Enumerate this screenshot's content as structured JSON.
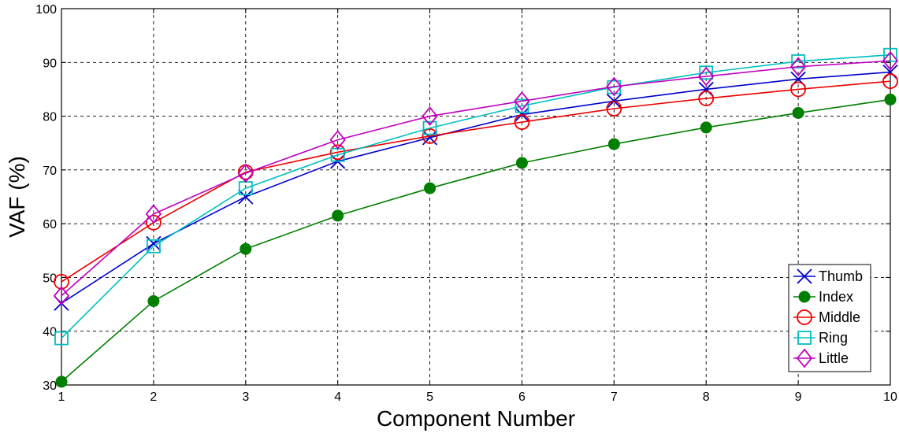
{
  "chart_data": {
    "type": "line",
    "title": "",
    "xlabel": "Component Number",
    "ylabel": "VAF (%)",
    "xlim": [
      1,
      10
    ],
    "ylim": [
      30,
      100
    ],
    "x": [
      1,
      2,
      3,
      4,
      5,
      6,
      7,
      8,
      9,
      10
    ],
    "xticks": [
      "1",
      "2",
      "3",
      "4",
      "5",
      "6",
      "7",
      "8",
      "9",
      "10"
    ],
    "yticks": [
      "30",
      "40",
      "50",
      "60",
      "70",
      "80",
      "90",
      "100"
    ],
    "grid": true,
    "legend_position": "bottom-right",
    "series": [
      {
        "name": "Thumb",
        "color": "#0000cc",
        "marker": "x",
        "values": [
          45.2,
          56.3,
          65.0,
          71.6,
          76.0,
          80.3,
          82.8,
          85.0,
          86.9,
          88.2
        ]
      },
      {
        "name": "Index",
        "color": "#007f00",
        "marker": "circle-filled",
        "values": [
          30.6,
          45.6,
          55.3,
          61.5,
          66.6,
          71.3,
          74.8,
          77.9,
          80.6,
          83.1
        ]
      },
      {
        "name": "Middle",
        "color": "#ee0000",
        "marker": "circle",
        "values": [
          49.2,
          60.2,
          69.6,
          73.3,
          76.3,
          78.9,
          81.4,
          83.3,
          85.0,
          86.5
        ]
      },
      {
        "name": "Ring",
        "color": "#00bfbf",
        "marker": "square",
        "values": [
          38.7,
          55.8,
          66.6,
          72.8,
          77.8,
          81.9,
          85.4,
          88.1,
          90.2,
          91.4
        ]
      },
      {
        "name": "Little",
        "color": "#bf00bf",
        "marker": "diamond",
        "values": [
          46.6,
          61.8,
          69.4,
          75.6,
          80.0,
          82.8,
          85.5,
          87.4,
          89.2,
          90.3
        ]
      }
    ]
  }
}
